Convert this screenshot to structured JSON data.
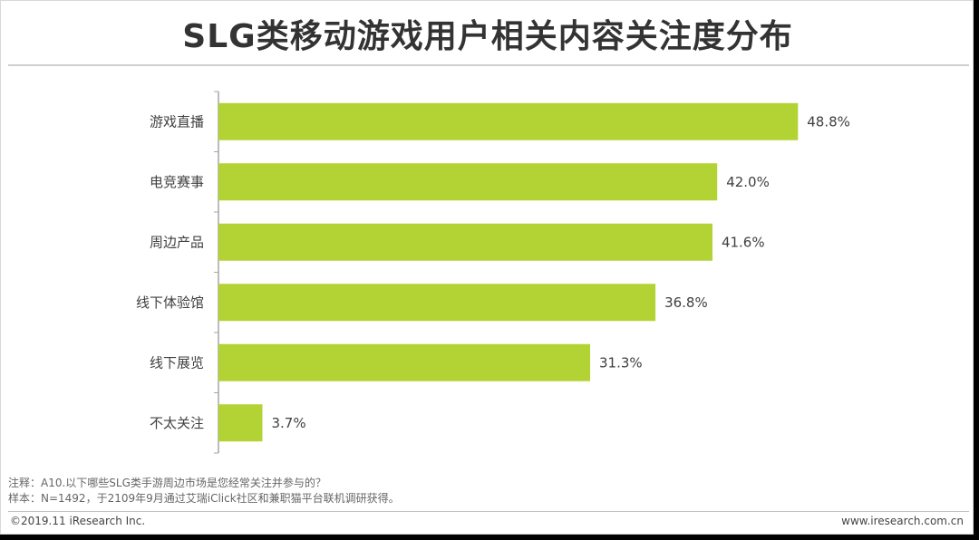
{
  "title": "SLG类移动游戏用户相关内容关注度分布",
  "colors": {
    "bar": "#b3d335",
    "axis": "#a6a6a6",
    "text": "#404040"
  },
  "chart_data": {
    "type": "bar",
    "orientation": "horizontal",
    "categories": [
      "游戏直播",
      "电竞赛事",
      "周边产品",
      "线下体验馆",
      "线下展览",
      "不太关注"
    ],
    "values": [
      48.8,
      42.0,
      41.6,
      36.8,
      31.3,
      3.7
    ],
    "value_labels": [
      "48.8%",
      "42.0%",
      "41.6%",
      "36.8%",
      "31.3%",
      "3.7%"
    ],
    "xlim": [
      0,
      50
    ],
    "grid": false,
    "legend": "none"
  },
  "notes": {
    "line1": "注释：A10.以下哪些SLG类手游周边市场是您经常关注并参与的？",
    "line2": "样本：N=1492，于2109年9月通过艾瑞iClick社区和兼职猫平台联机调研获得。"
  },
  "footer": {
    "copyright": "©2019.11 iResearch Inc.",
    "website": "www.iresearch.com.cn"
  }
}
